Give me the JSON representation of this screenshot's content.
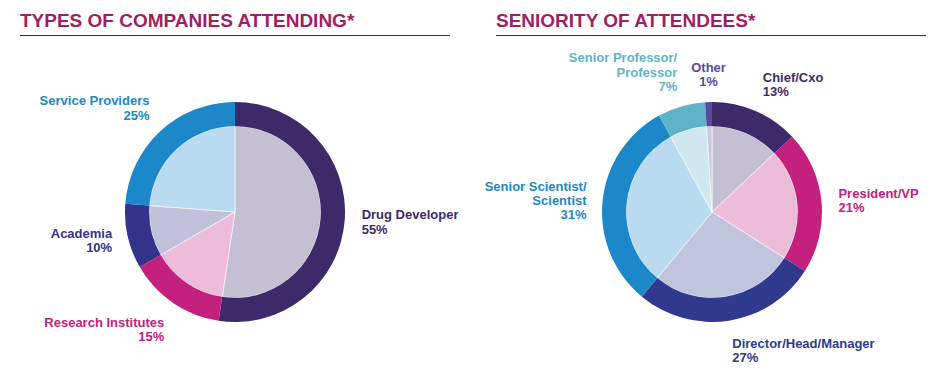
{
  "chart_data": [
    {
      "type": "donut",
      "title": "TYPES OF COMPANIES ATTENDING*",
      "categories": [
        "Drug Developer",
        "Research Institutes",
        "Academia",
        "Service Providers"
      ],
      "values": [
        55,
        15,
        10,
        25
      ],
      "value_labels": [
        "55%",
        "15%",
        "10%",
        "25%"
      ],
      "colors": [
        "#3d2a6b",
        "#c4207e",
        "#34338c",
        "#1c87c9"
      ],
      "data_labels": true
    },
    {
      "type": "donut",
      "title": "SENIORITY OF ATTENDEES*",
      "categories": [
        "Chief/Cxo",
        "President/VP",
        "Director/Head/Manager",
        "Senior Scientist/Scientist",
        "Senior Professor/Professor",
        "Other"
      ],
      "values": [
        13,
        21,
        27,
        31,
        7,
        1
      ],
      "value_labels": [
        "13%",
        "21%",
        "27%",
        "31%",
        "7%",
        "1%"
      ],
      "colors": [
        "#3d2a6b",
        "#c4207e",
        "#2f3a8f",
        "#1c87c9",
        "#5fb3c9",
        "#5a4a9c"
      ],
      "data_labels": true
    }
  ]
}
